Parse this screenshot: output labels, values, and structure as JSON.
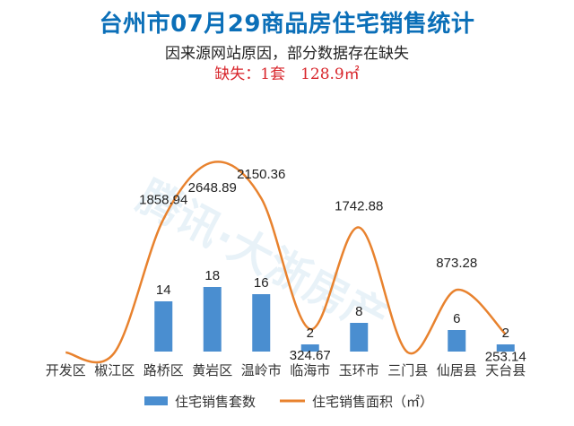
{
  "header": {
    "title": "台州市07月29商品房住宅销售统计",
    "subtitle": "因来源网站原因，部分数据存在缺失",
    "missing": "缺失：1套　128.9㎡"
  },
  "watermark": "腾讯·大浙房产",
  "colors": {
    "bar": "#4a8ed0",
    "line": "#e8822e",
    "title": "#0b6fb8",
    "missing": "#d8262c"
  },
  "chart_data": {
    "type": "bar",
    "categories": [
      "开发区",
      "椒江区",
      "路桥区",
      "黄岩区",
      "温岭市",
      "临海市",
      "玉环市",
      "三门县",
      "仙居县",
      "天台县"
    ],
    "series": [
      {
        "name": "住宅销售套数",
        "type": "bar",
        "values": [
          0,
          0,
          14,
          18,
          16,
          2,
          8,
          0,
          6,
          2
        ]
      },
      {
        "name": "住宅销售面积（㎡）",
        "type": "line",
        "values": [
          0,
          0,
          1858.94,
          2648.89,
          2150.36,
          324.67,
          1742.88,
          0,
          873.28,
          253.14
        ]
      }
    ],
    "data_labels": {
      "bar": [
        "",
        "",
        "14",
        "18",
        "16",
        "2",
        "8",
        "",
        "6",
        "2"
      ],
      "line": [
        "",
        "",
        "1858.94",
        "2648.89",
        "2150.36",
        "324.67",
        "1742.88",
        "",
        "873.28",
        "253.14"
      ]
    },
    "legend_position": "bottom",
    "grid": false
  }
}
